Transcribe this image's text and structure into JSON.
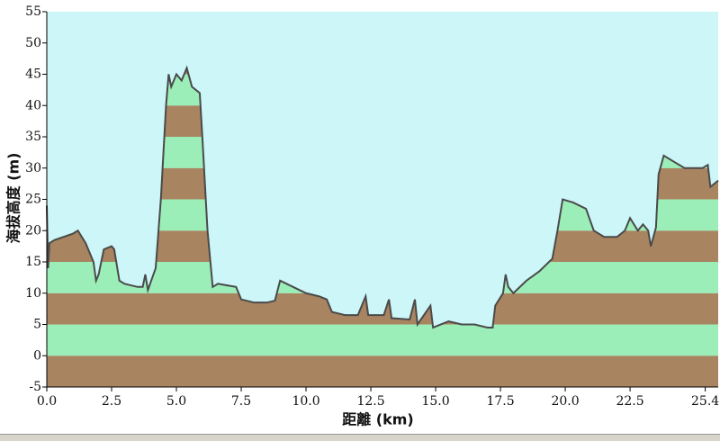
{
  "chart_data": {
    "type": "area",
    "x_label": "距離 (km)",
    "y_label": "海拔高度 (m)",
    "x": [
      0,
      0.05,
      0.1,
      0.3,
      1.0,
      1.2,
      1.5,
      1.8,
      1.9,
      2.0,
      2.2,
      2.5,
      2.6,
      2.8,
      3.0,
      3.5,
      3.7,
      3.8,
      3.9,
      4.2,
      4.4,
      4.6,
      4.7,
      4.8,
      5.0,
      5.2,
      5.4,
      5.6,
      5.9,
      6.0,
      6.2,
      6.4,
      6.6,
      7.3,
      7.5,
      8.0,
      8.5,
      8.8,
      9.0,
      9.5,
      10.0,
      10.5,
      10.8,
      11.0,
      11.5,
      12.0,
      12.3,
      12.4,
      13.0,
      13.2,
      13.3,
      14.0,
      14.2,
      14.3,
      14.8,
      14.9,
      15.5,
      16.0,
      16.5,
      17.0,
      17.2,
      17.3,
      17.6,
      17.7,
      17.8,
      18.0,
      18.5,
      19.0,
      19.5,
      19.7,
      19.9,
      20.3,
      20.8,
      21.1,
      21.5,
      22.0,
      22.3,
      22.5,
      22.8,
      23.0,
      23.2,
      23.3,
      23.5,
      23.6,
      23.8,
      24.2,
      24.6,
      25.0,
      25.3,
      25.5,
      25.6,
      25.9
    ],
    "values": [
      24,
      14,
      18,
      18.5,
      19.5,
      20,
      18,
      15,
      12,
      13,
      17,
      17.5,
      17,
      12,
      11.5,
      11,
      11,
      13,
      10.5,
      14,
      25,
      40,
      45,
      43,
      45,
      44,
      46,
      43,
      42,
      35,
      20,
      11,
      11.5,
      11,
      9,
      8.5,
      8.5,
      8.8,
      12,
      11,
      10,
      9.5,
      9,
      7,
      6.5,
      6.5,
      9.5,
      6.5,
      6.5,
      9,
      6,
      5.8,
      9,
      5,
      8,
      4.5,
      5.5,
      5,
      5,
      4.5,
      4.5,
      8,
      10,
      13,
      11,
      10,
      12,
      13.5,
      15.5,
      20,
      25,
      24.5,
      23.5,
      20,
      19,
      19,
      20,
      22,
      20,
      21,
      20,
      17.5,
      20.5,
      29,
      32,
      31,
      30,
      30,
      30,
      30.5,
      27,
      28
    ],
    "line_color": "#4a4a4a",
    "band_colors": [
      "#a88460",
      "#9ceeb8"
    ],
    "background": "#ccf6f8",
    "xlim": [
      0,
      25.9
    ],
    "ylim": [
      -5,
      55
    ],
    "xticks": [
      {
        "value": 0,
        "label": "0.0"
      },
      2.5,
      {
        "value": 5,
        "label": "5.0"
      },
      7.5,
      {
        "value": 10,
        "label": "10.0"
      },
      12.5,
      {
        "value": 15,
        "label": "15.0"
      },
      17.5,
      {
        "value": 20,
        "label": "20.0"
      },
      22.5,
      25.4
    ],
    "yticks": [
      -5,
      0,
      5,
      10,
      15,
      20,
      25,
      30,
      35,
      40,
      45,
      50,
      55
    ]
  }
}
